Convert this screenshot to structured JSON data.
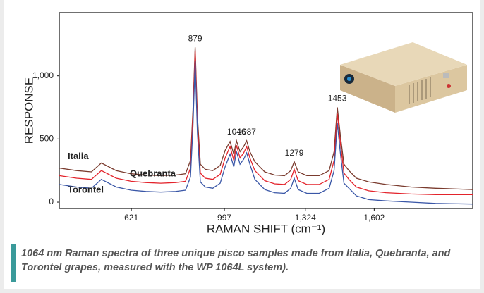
{
  "chart_data": {
    "type": "line",
    "x_label": "RAMAN SHIFT (cm⁻¹)",
    "y_label": "RESPONSE",
    "xlim": [
      330,
      2000
    ],
    "ylim": [
      -50,
      1500
    ],
    "xticks": [
      621,
      997,
      {
        "value": 1324,
        "label": "1,324"
      },
      {
        "value": 1602,
        "label": "1,602"
      }
    ],
    "yticks": [
      0,
      500,
      {
        "value": 1000,
        "label": "1,000"
      }
    ],
    "x": [
      330,
      400,
      460,
      500,
      560,
      620,
      680,
      740,
      800,
      840,
      860,
      870,
      879,
      888,
      900,
      920,
      950,
      980,
      1000,
      1020,
      1035,
      1046,
      1060,
      1075,
      1087,
      1100,
      1120,
      1160,
      1200,
      1240,
      1265,
      1279,
      1295,
      1330,
      1380,
      1420,
      1440,
      1453,
      1466,
      1480,
      1500,
      1530,
      1580,
      1650,
      1750,
      1850,
      2000
    ],
    "series": [
      {
        "name": "Italia",
        "color": "#7a3b2e",
        "values": [
          270,
          250,
          240,
          310,
          250,
          225,
          215,
          210,
          215,
          225,
          330,
          730,
          1225,
          680,
          300,
          260,
          250,
          290,
          410,
          480,
          380,
          486,
          400,
          440,
          486,
          400,
          320,
          240,
          215,
          210,
          250,
          320,
          240,
          210,
          210,
          250,
          400,
          750,
          520,
          300,
          250,
          190,
          160,
          140,
          120,
          110,
          100
        ]
      },
      {
        "name": "Quebranta",
        "color": "#e3232b",
        "values": [
          210,
          190,
          180,
          250,
          190,
          165,
          155,
          150,
          155,
          165,
          270,
          680,
          1200,
          620,
          230,
          190,
          180,
          220,
          350,
          440,
          330,
          450,
          350,
          390,
          440,
          350,
          250,
          170,
          145,
          140,
          180,
          260,
          170,
          140,
          140,
          180,
          330,
          700,
          460,
          230,
          180,
          120,
          90,
          75,
          65,
          60,
          60
        ]
      },
      {
        "name": "Torontel",
        "color": "#3a57a7",
        "values": [
          140,
          120,
          110,
          180,
          120,
          95,
          85,
          80,
          85,
          95,
          200,
          600,
          1120,
          550,
          160,
          120,
          110,
          150,
          280,
          380,
          280,
          400,
          300,
          340,
          390,
          300,
          180,
          100,
          75,
          70,
          110,
          190,
          100,
          70,
          70,
          110,
          250,
          625,
          380,
          150,
          110,
          50,
          20,
          10,
          0,
          -10,
          -15
        ]
      }
    ],
    "annotations": [
      {
        "label": "879",
        "x": 879,
        "y": 1225
      },
      {
        "label": "1046",
        "x": 1046,
        "y": 486
      },
      {
        "label": "1087",
        "x": 1087,
        "y": 486
      },
      {
        "label": "1279",
        "x": 1279,
        "y": 320
      },
      {
        "label": "1453",
        "x": 1453,
        "y": 750
      }
    ]
  },
  "caption": "1064 nm Raman spectra of three unique pisco samples made from Italia, Quebranta, and Torontel grapes, measured with the WP 1064L system)."
}
